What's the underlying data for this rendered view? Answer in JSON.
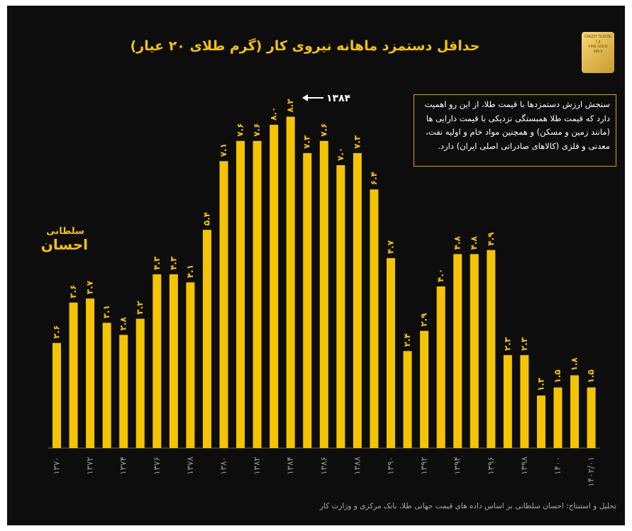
{
  "title": "حداقل دستمزد ماهانه نیروی کار (گرم طلای ۲۰ عیار)",
  "annotation": "۱۳۸۴",
  "note": [
    "سنجش ارزش دستمزدها با قیمت طلا، از این رو اهمیت",
    "دارد که قیمت طلا همبستگی نزدیکی با قیمت دارایی ها",
    "(مانند زمین و مسکن) و همچنین مواد خام و اولیه نفت،",
    "معدنی و فلزی (کالاهای صادراتی اصلی ایران) دارد."
  ],
  "logo": [
    "احسان",
    "سلطانی"
  ],
  "gold_bar": [
    "CREDIT SUISSE",
    "1 g",
    "FINE GOLD",
    "999.9"
  ],
  "footer": "تحلیل و استنتاج: احسان سلطانی بر اساس داده های قیمت جهانی طلا، بانک مرکزی و وزارت کار",
  "chart_data": {
    "type": "bar",
    "color": "#f5c400",
    "categories": [
      "۱۳۷۰",
      null,
      "۱۳۷۲",
      null,
      "۱۳۷۴",
      null,
      "۱۳۷۶",
      null,
      "۱۳۷۸",
      null,
      "۱۳۸۰",
      null,
      "۱۳۸۲",
      null,
      "۱۳۸۴",
      null,
      "۱۳۸۶",
      null,
      "۱۳۸۸",
      null,
      "۱۳۹۰",
      null,
      "۱۳۹۲",
      null,
      "۱۳۹۴",
      null,
      "۱۳۹۶",
      null,
      "۱۳۹۸",
      null,
      "۱۴۰۰",
      null,
      "۱۴۰۲/۰۱"
    ],
    "values": [
      2.6,
      3.6,
      3.7,
      3.1,
      2.8,
      3.2,
      4.3,
      4.3,
      4.1,
      5.4,
      7.1,
      7.6,
      7.6,
      8.0,
      8.2,
      7.3,
      7.6,
      7.0,
      7.3,
      6.4,
      4.7,
      2.4,
      2.9,
      4.0,
      4.8,
      4.8,
      4.9,
      2.3,
      2.3,
      1.3,
      1.5,
      1.8,
      1.5
    ],
    "value_labels": [
      "۲.۶",
      "۳.۶",
      "۳.۷",
      "۳.۱",
      "۲.۸",
      "۳.۲",
      "۴.۳",
      "۴.۳",
      "۴.۱",
      "۵.۴",
      "۷.۱",
      "۷.۶",
      "۷.۶",
      "۸.۰",
      "۸.۲",
      "۷.۳",
      "۷.۶",
      "۷.۰",
      "۷.۳",
      "۶.۴",
      "۴.۷",
      "۲.۴",
      "۲.۹",
      "۴.۰",
      "۴.۸",
      "۴.۸",
      "۴.۹",
      "۲.۳",
      "۲.۳",
      "۱.۳",
      "۱.۵",
      "۱.۸",
      "۱.۵"
    ]
  }
}
